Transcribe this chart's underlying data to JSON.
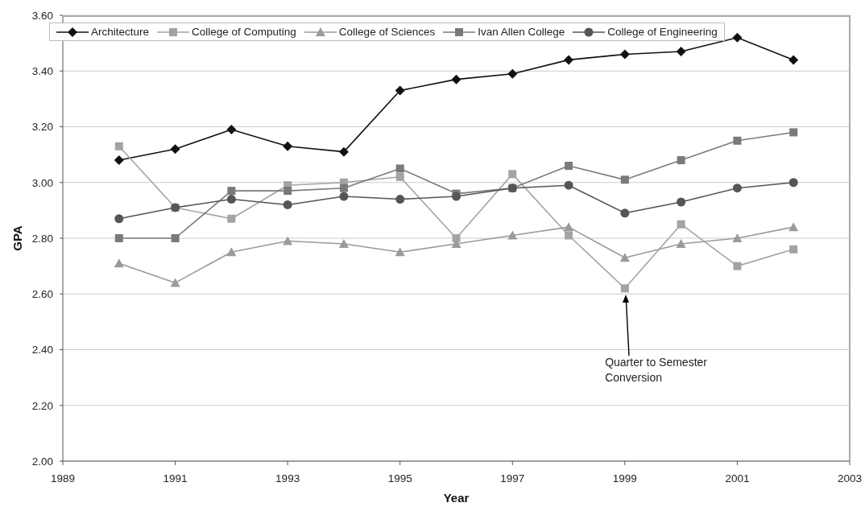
{
  "chart_data": {
    "type": "line",
    "xlabel": "Year",
    "ylabel": "GPA",
    "x": [
      1990,
      1991,
      1992,
      1993,
      1994,
      1995,
      1996,
      1997,
      1998,
      1999,
      2000,
      2001,
      2002
    ],
    "series": [
      {
        "name": "Architecture",
        "color": "#111111",
        "marker": "diamond",
        "values": [
          3.08,
          3.12,
          3.19,
          3.13,
          3.11,
          3.33,
          3.37,
          3.39,
          3.44,
          3.46,
          3.47,
          3.52,
          3.44
        ]
      },
      {
        "name": "College of Computing",
        "color": "#a3a3a3",
        "marker": "square",
        "values": [
          3.13,
          2.91,
          2.87,
          2.99,
          3.0,
          3.02,
          2.8,
          3.03,
          2.81,
          2.62,
          2.85,
          2.7,
          2.76
        ]
      },
      {
        "name": "College of Sciences",
        "color": "#9a9a9a",
        "marker": "triangle",
        "values": [
          2.71,
          2.64,
          2.75,
          2.79,
          2.78,
          2.75,
          2.78,
          2.81,
          2.84,
          2.73,
          2.78,
          2.8,
          2.84
        ]
      },
      {
        "name": "Ivan Allen College",
        "color": "#7a7a7a",
        "marker": "square",
        "values": [
          2.8,
          2.8,
          2.97,
          2.97,
          2.98,
          3.05,
          2.96,
          2.98,
          3.06,
          3.01,
          3.08,
          3.15,
          3.18
        ]
      },
      {
        "name": "College of Engineering",
        "color": "#555555",
        "marker": "circle",
        "values": [
          2.87,
          2.91,
          2.94,
          2.92,
          2.95,
          2.94,
          2.95,
          2.98,
          2.99,
          2.89,
          2.93,
          2.98,
          3.0
        ]
      }
    ],
    "xlim": [
      1989,
      2003
    ],
    "xticks": [
      1989,
      1991,
      1993,
      1995,
      1997,
      1999,
      2001,
      2003
    ],
    "ylim": [
      2,
      3.6
    ],
    "yticks": [
      {
        "value": 2,
        "label": "2.00"
      },
      {
        "value": 2.2,
        "label": "2.20"
      },
      {
        "value": 2.4,
        "label": "2.40"
      },
      {
        "value": 2.6,
        "label": "2.60"
      },
      {
        "value": 2.8,
        "label": "2.80"
      },
      {
        "value": 3,
        "label": "3.00"
      },
      {
        "value": 3.2,
        "label": "3.20"
      },
      {
        "value": 3.4,
        "label": "3.40"
      },
      {
        "value": 3.6,
        "label": "3.60"
      }
    ],
    "grid": "y",
    "legend": "top left",
    "annotations": [
      "Quarter to Semester Conversion"
    ]
  }
}
